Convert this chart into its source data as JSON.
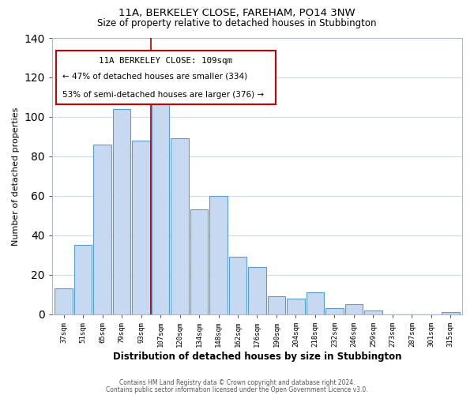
{
  "title1": "11A, BERKELEY CLOSE, FAREHAM, PO14 3NW",
  "title2": "Size of property relative to detached houses in Stubbington",
  "xlabel": "Distribution of detached houses by size in Stubbington",
  "ylabel": "Number of detached properties",
  "categories": [
    "37sqm",
    "51sqm",
    "65sqm",
    "79sqm",
    "93sqm",
    "107sqm",
    "120sqm",
    "134sqm",
    "148sqm",
    "162sqm",
    "176sqm",
    "190sqm",
    "204sqm",
    "218sqm",
    "232sqm",
    "246sqm",
    "259sqm",
    "273sqm",
    "287sqm",
    "301sqm",
    "315sqm"
  ],
  "values": [
    13,
    35,
    86,
    104,
    88,
    107,
    89,
    53,
    60,
    29,
    24,
    9,
    8,
    11,
    3,
    5,
    2,
    0,
    0,
    0,
    1
  ],
  "bar_color": "#c6d9f0",
  "bar_edge_color": "#5b9bd5",
  "vline_color": "#aa0000",
  "annotation_title": "11A BERKELEY CLOSE: 109sqm",
  "annotation_line1": "← 47% of detached houses are smaller (334)",
  "annotation_line2": "53% of semi-detached houses are larger (376) →",
  "annotation_box_edge": "#cc0000",
  "ylim": [
    0,
    140
  ],
  "footer1": "Contains HM Land Registry data © Crown copyright and database right 2024.",
  "footer2": "Contains public sector information licensed under the Open Government Licence v3.0.",
  "background_color": "#ffffff",
  "grid_color": "#d0d8e8"
}
